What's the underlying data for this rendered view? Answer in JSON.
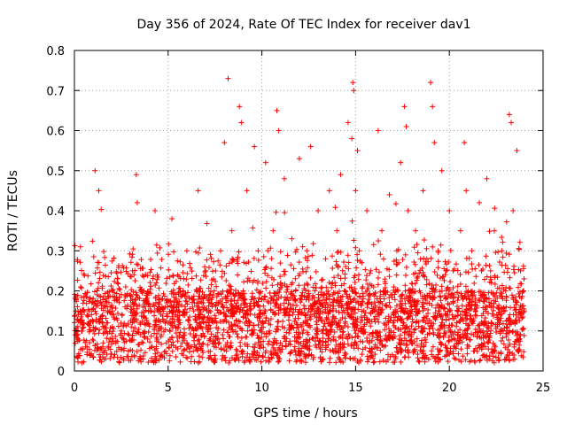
{
  "chart_data": {
    "type": "scatter",
    "title": "Day 356 of 2024, Rate Of TEC Index for receiver dav1",
    "xlabel": "GPS time / hours",
    "ylabel": "ROTI / TECUs",
    "xlim": [
      0,
      25
    ],
    "ylim": [
      0,
      0.8
    ],
    "xticks": [
      0,
      5,
      10,
      15,
      20,
      25
    ],
    "xtick_labels": [
      "0",
      "5",
      "10",
      "15",
      "20",
      "25"
    ],
    "yticks": [
      0,
      0.1,
      0.2,
      0.3,
      0.4,
      0.5,
      0.6,
      0.7,
      0.8
    ],
    "ytick_labels": [
      "0",
      "0.1",
      "0.2",
      "0.3",
      "0.4",
      "0.5",
      "0.6",
      "0.7",
      "0.8"
    ],
    "grid": true,
    "legend": false,
    "marker": "plus",
    "color": "#ff0000",
    "series": [
      {
        "x": [
          0.2,
          0.4,
          0.6,
          0.8,
          1.0,
          1.1,
          1.2,
          1.3,
          1.5,
          1.7,
          1.9,
          2.1,
          2.3,
          2.5,
          2.7,
          2.9,
          3.1,
          3.3,
          3.35,
          3.5,
          3.7,
          3.9,
          4.1,
          4.3,
          4.5,
          4.7,
          4.9,
          5.0,
          5.2,
          5.4,
          5.6,
          5.8,
          6.0,
          6.2,
          6.4,
          6.6,
          6.8,
          7.0,
          7.2,
          7.4,
          7.6,
          7.8,
          8.0,
          8.2,
          8.4,
          8.6,
          8.8,
          8.9,
          9.0,
          9.2,
          9.4,
          9.6,
          9.8,
          10.0,
          10.2,
          10.4,
          10.6,
          10.8,
          10.9,
          11.0,
          11.2,
          11.4,
          11.6,
          11.8,
          12.0,
          12.2,
          12.4,
          12.6,
          12.8,
          13.0,
          13.2,
          13.4,
          13.6,
          13.8,
          14.0,
          14.2,
          14.4,
          14.6,
          14.8,
          14.85,
          14.9,
          15.0,
          15.1,
          15.2,
          15.4,
          15.6,
          15.8,
          16.0,
          16.2,
          16.4,
          16.6,
          16.8,
          17.0,
          17.2,
          17.4,
          17.6,
          17.7,
          17.8,
          18.0,
          18.2,
          18.4,
          18.6,
          18.8,
          19.0,
          19.1,
          19.2,
          19.4,
          19.6,
          19.8,
          20.0,
          20.2,
          20.4,
          20.6,
          20.8,
          20.9,
          21.0,
          21.2,
          21.4,
          21.6,
          21.8,
          22.0,
          22.2,
          22.4,
          22.6,
          22.8,
          23.0,
          23.2,
          23.3,
          23.4,
          23.6,
          23.8,
          24.0
        ],
        "y": [
          0.08,
          0.12,
          0.06,
          0.15,
          0.1,
          0.5,
          0.2,
          0.45,
          0.12,
          0.18,
          0.08,
          0.14,
          0.22,
          0.1,
          0.16,
          0.09,
          0.25,
          0.49,
          0.42,
          0.12,
          0.2,
          0.08,
          0.15,
          0.4,
          0.1,
          0.18,
          0.07,
          0.12,
          0.38,
          0.14,
          0.09,
          0.2,
          0.3,
          0.11,
          0.17,
          0.45,
          0.13,
          0.25,
          0.08,
          0.19,
          0.12,
          0.3,
          0.57,
          0.73,
          0.35,
          0.15,
          0.66,
          0.62,
          0.2,
          0.45,
          0.12,
          0.56,
          0.3,
          0.18,
          0.52,
          0.1,
          0.35,
          0.65,
          0.6,
          0.22,
          0.48,
          0.14,
          0.33,
          0.2,
          0.53,
          0.12,
          0.3,
          0.56,
          0.17,
          0.4,
          0.1,
          0.28,
          0.45,
          0.15,
          0.35,
          0.49,
          0.2,
          0.62,
          0.58,
          0.72,
          0.7,
          0.45,
          0.55,
          0.3,
          0.18,
          0.4,
          0.25,
          0.15,
          0.6,
          0.35,
          0.2,
          0.44,
          0.12,
          0.3,
          0.52,
          0.66,
          0.61,
          0.4,
          0.2,
          0.35,
          0.15,
          0.45,
          0.28,
          0.72,
          0.66,
          0.57,
          0.3,
          0.5,
          0.18,
          0.4,
          0.25,
          0.12,
          0.35,
          0.57,
          0.45,
          0.2,
          0.3,
          0.15,
          0.42,
          0.1,
          0.48,
          0.25,
          0.35,
          0.14,
          0.3,
          0.2,
          0.64,
          0.62,
          0.4,
          0.55,
          0.25,
          0.15
        ]
      }
    ],
    "density_note_free": true
  }
}
